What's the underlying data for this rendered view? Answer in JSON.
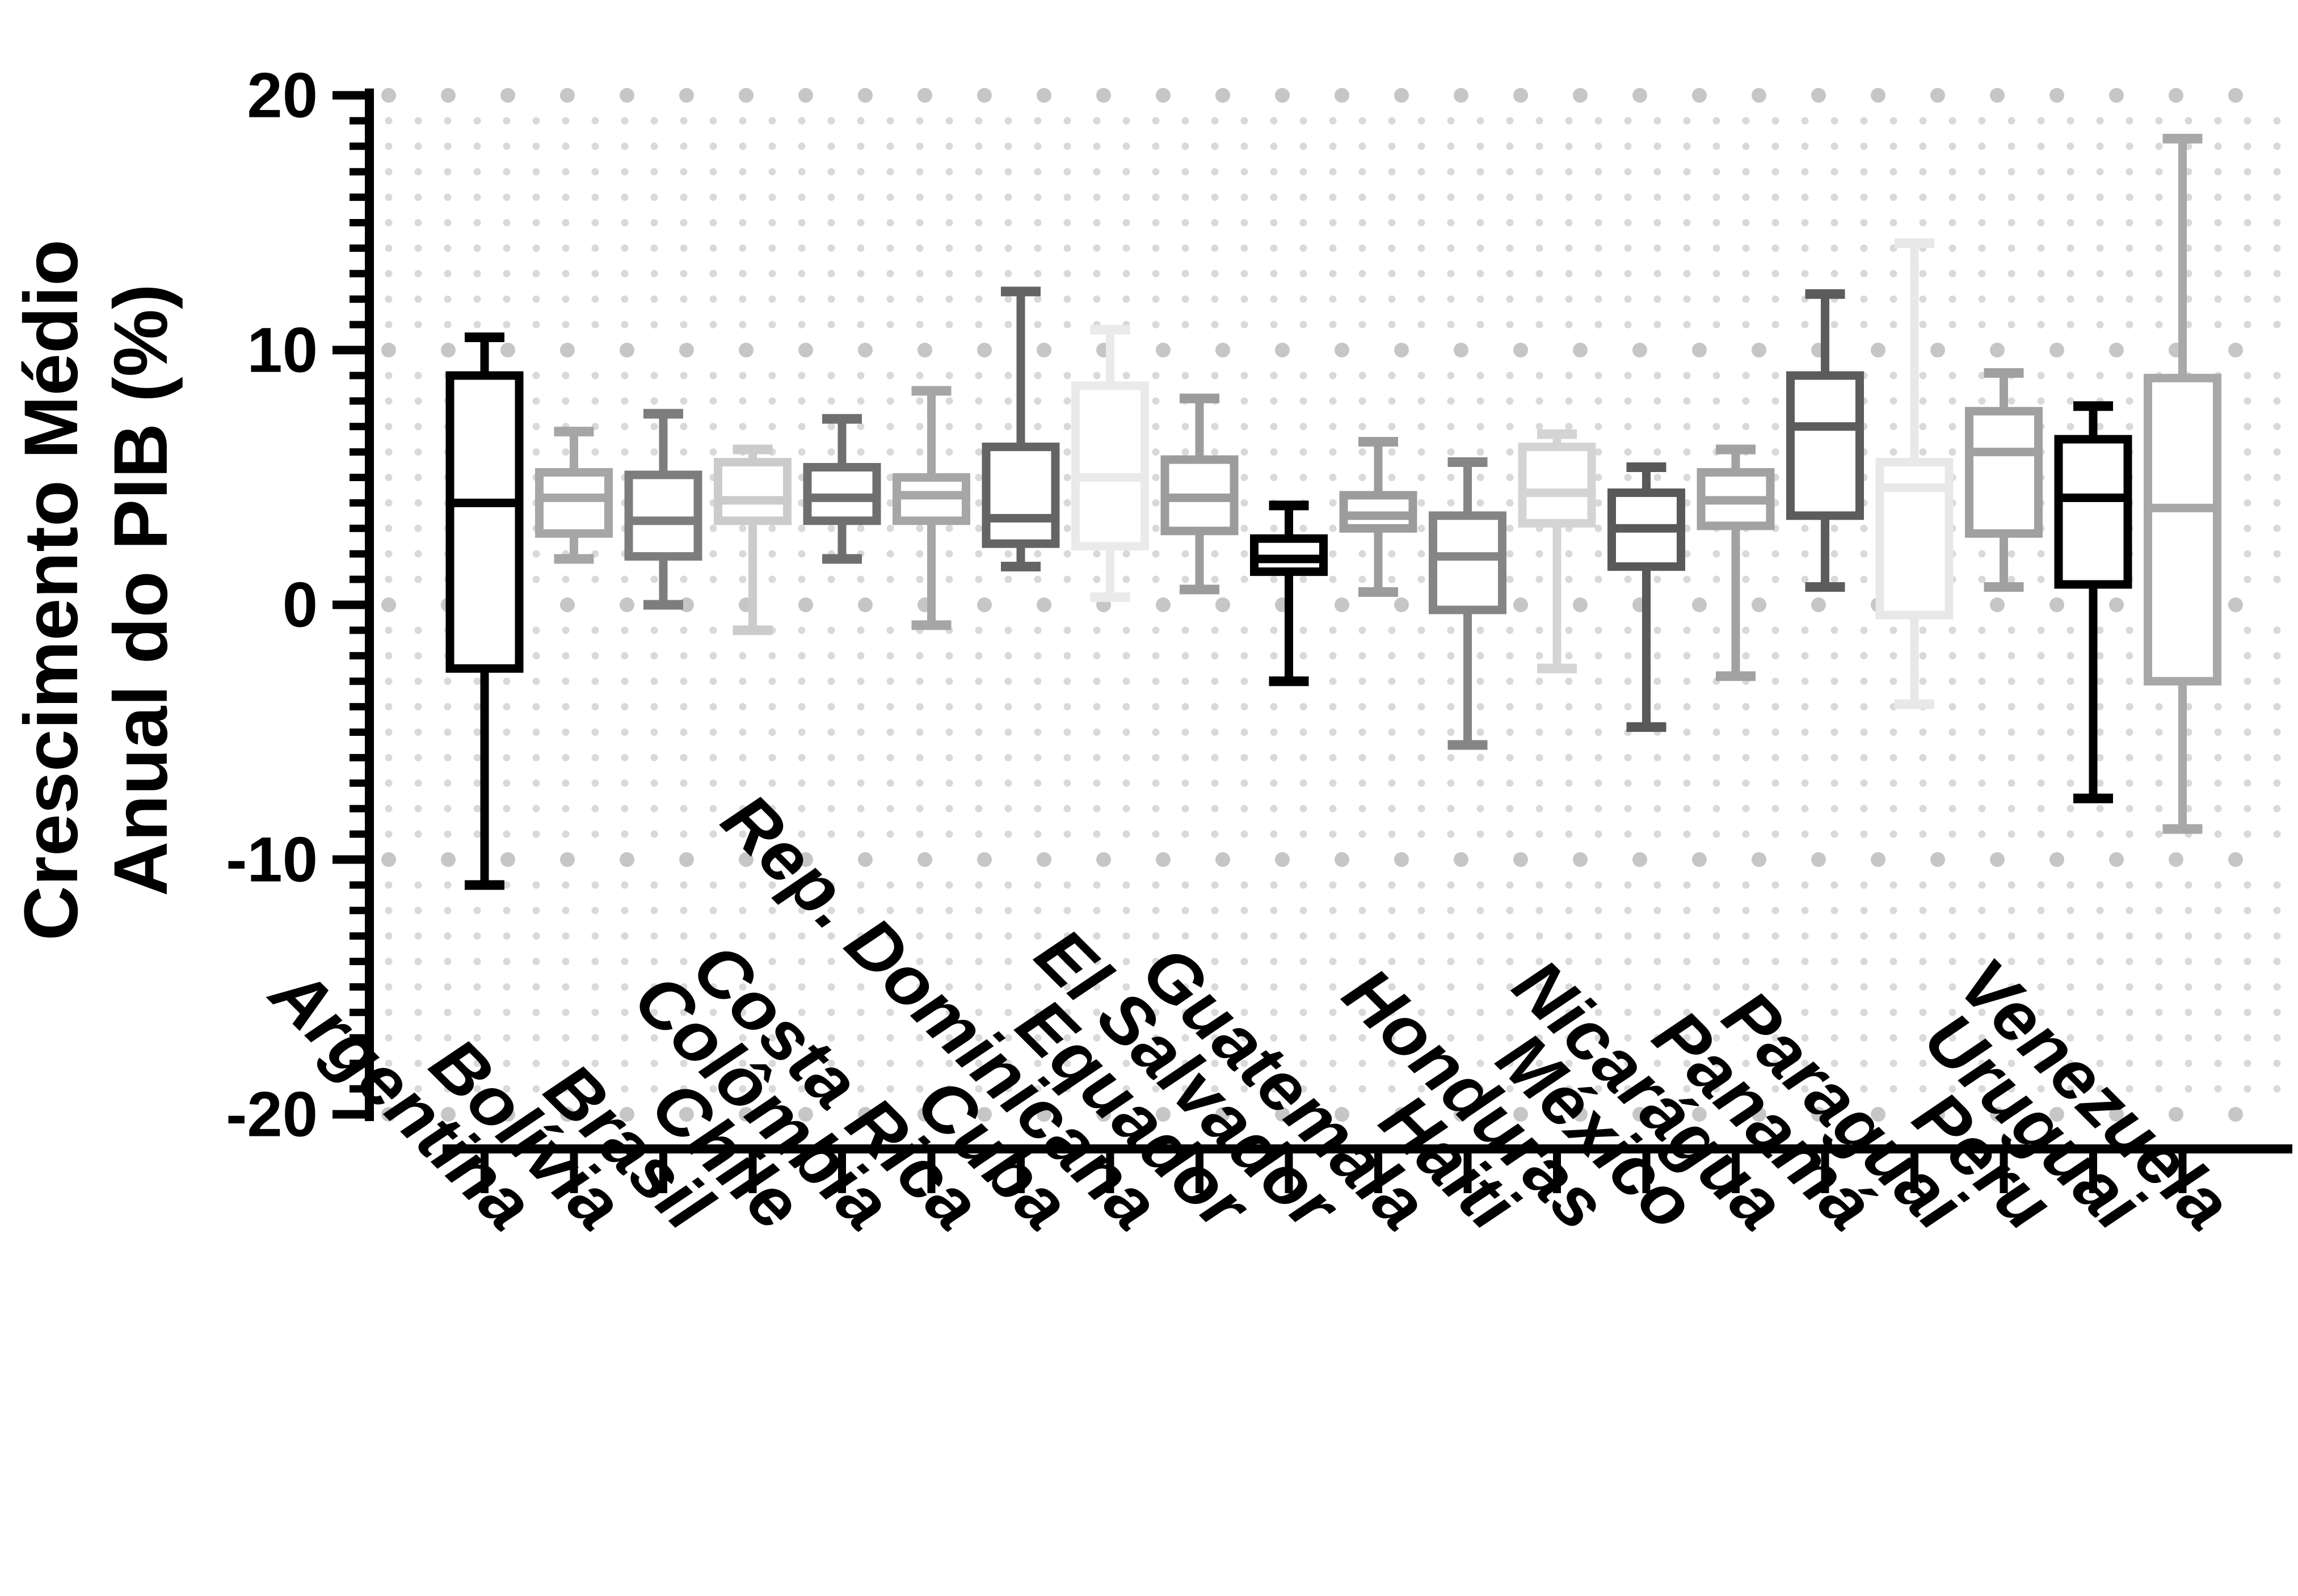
{
  "chart_data": {
    "type": "boxplot",
    "title": "",
    "ylabel_lines": [
      "Crescimento Médio",
      "Anual do PIB (%)"
    ],
    "xlabel": "",
    "ylim": [
      -20,
      20
    ],
    "yticks": [
      "20",
      "10",
      "0",
      "-10",
      "-20"
    ],
    "ytick_values": [
      20,
      10,
      0,
      -10,
      -20
    ],
    "grid": {
      "style": "dotted",
      "minor_step": 1,
      "major_step": 10,
      "minor_color": "#d9d9d9",
      "major_color": "#c6c6c6"
    },
    "legend": "none",
    "categories": [
      "Argentina",
      "Bolívia",
      "Brasil",
      "Chile",
      "Colômbia",
      "Costa Rica",
      "Cuba",
      "Rep. Dominicana",
      "Equador",
      "El Salvador",
      "Guatemala",
      "Haiti",
      "Honduras",
      "México",
      "Nicarágua",
      "Panamá",
      "Paraguai",
      "Peru",
      "Uruguai",
      "Venezuela"
    ],
    "series": [
      {
        "name": "Argentina",
        "min": -11.0,
        "q1": -2.5,
        "median": 4.0,
        "q3": 9.0,
        "max": 10.5,
        "color": "#000000"
      },
      {
        "name": "Bolívia",
        "min": 1.8,
        "q1": 2.8,
        "median": 4.2,
        "q3": 5.2,
        "max": 6.8,
        "color": "#a6a6a6"
      },
      {
        "name": "Brasil",
        "min": 0.0,
        "q1": 1.9,
        "median": 3.3,
        "q3": 5.1,
        "max": 7.5,
        "color": "#7d7d7d"
      },
      {
        "name": "Chile",
        "min": -1.0,
        "q1": 3.3,
        "median": 4.1,
        "q3": 5.6,
        "max": 6.1,
        "color": "#cbcbcb"
      },
      {
        "name": "Colômbia",
        "min": 1.8,
        "q1": 3.3,
        "median": 4.2,
        "q3": 5.4,
        "max": 7.3,
        "color": "#6f6f6f"
      },
      {
        "name": "Costa Rica",
        "min": -0.8,
        "q1": 3.3,
        "median": 4.3,
        "q3": 5.0,
        "max": 8.4,
        "color": "#a6a6a6"
      },
      {
        "name": "Cuba",
        "min": 1.5,
        "q1": 2.4,
        "median": 3.4,
        "q3": 6.2,
        "max": 12.3,
        "color": "#646464"
      },
      {
        "name": "Rep. Dominicana",
        "min": 0.3,
        "q1": 2.3,
        "median": 5.0,
        "q3": 8.6,
        "max": 10.8,
        "color": "#eaeaea"
      },
      {
        "name": "Equador",
        "min": 0.6,
        "q1": 2.9,
        "median": 4.2,
        "q3": 5.7,
        "max": 8.1,
        "color": "#9c9c9c"
      },
      {
        "name": "El Salvador",
        "min": -3.0,
        "q1": 1.3,
        "median": 1.8,
        "q3": 2.6,
        "max": 3.9,
        "color": "#000000"
      },
      {
        "name": "Guatemala",
        "min": 0.5,
        "q1": 3.0,
        "median": 3.5,
        "q3": 4.3,
        "max": 6.4,
        "color": "#9c9c9c"
      },
      {
        "name": "Haiti",
        "min": -5.5,
        "q1": -0.2,
        "median": 1.9,
        "q3": 3.5,
        "max": 5.6,
        "color": "#858585"
      },
      {
        "name": "Honduras",
        "min": -2.5,
        "q1": 3.2,
        "median": 4.4,
        "q3": 6.2,
        "max": 6.7,
        "color": "#d4d4d4"
      },
      {
        "name": "México",
        "min": -4.8,
        "q1": 1.5,
        "median": 3.0,
        "q3": 4.4,
        "max": 5.4,
        "color": "#595959"
      },
      {
        "name": "Nicarágua",
        "min": -2.8,
        "q1": 3.1,
        "median": 4.1,
        "q3": 5.2,
        "max": 6.1,
        "color": "#a2a2a2"
      },
      {
        "name": "Panamá",
        "min": 0.7,
        "q1": 3.5,
        "median": 7.0,
        "q3": 9.0,
        "max": 12.2,
        "color": "#5c5c5c"
      },
      {
        "name": "Paraguai",
        "min": -3.9,
        "q1": -0.4,
        "median": 4.6,
        "q3": 5.6,
        "max": 14.2,
        "color": "#e8e8e8"
      },
      {
        "name": "Peru",
        "min": 0.7,
        "q1": 2.8,
        "median": 6.0,
        "q3": 7.6,
        "max": 9.1,
        "color": "#a0a0a0"
      },
      {
        "name": "Uruguai",
        "min": -7.6,
        "q1": 0.8,
        "median": 4.2,
        "q3": 6.5,
        "max": 7.8,
        "color": "#000000"
      },
      {
        "name": "Venezuela",
        "min": -8.8,
        "q1": -3.0,
        "median": 3.8,
        "q3": 8.9,
        "max": 18.3,
        "color": "#a8a8a8"
      }
    ]
  }
}
